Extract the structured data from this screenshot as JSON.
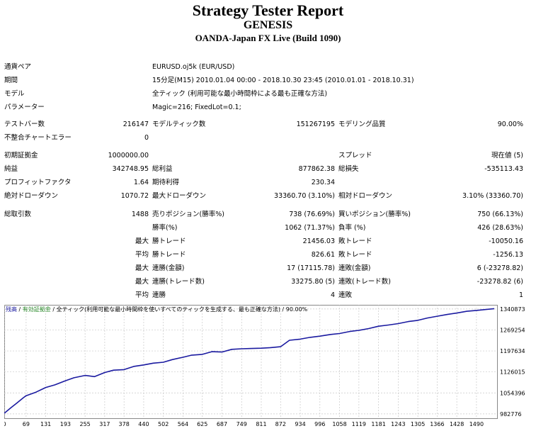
{
  "report": {
    "title": "Strategy Tester Report",
    "expert": "GENESIS",
    "server": "OANDA-Japan FX Live (Build 1090)"
  },
  "info": {
    "symbol_label": "通貨ペア",
    "symbol_value": "EURUSD.oj5k (EUR/USD)",
    "period_label": "期間",
    "period_value": "15分足(M15) 2010.01.04 00:00 - 2018.10.30 23:45 (2010.01.01 - 2018.10.31)",
    "model_label": "モデル",
    "model_value": "全ティック (利用可能な最小時間枠による最も正確な方法)",
    "params_label": "パラメーター",
    "params_value": "Magic=216; FixedLot=0.1;"
  },
  "stats": {
    "bars_label": "テストバー数",
    "bars_value": "216147",
    "ticks_label": "モデルティック数",
    "ticks_value": "151267195",
    "quality_label": "モデリング品質",
    "quality_value": "90.00%",
    "mismatch_label": "不整合チャートエラー",
    "mismatch_value": "0",
    "deposit_label": "初期証拠金",
    "deposit_value": "1000000.00",
    "spread_label": "スプレッド",
    "spread_value": "現在値 (5)",
    "net_label": "純益",
    "net_value": "342748.95",
    "gross_profit_label": "総利益",
    "gross_profit_value": "877862.38",
    "gross_loss_label": "総損失",
    "gross_loss_value": "-535113.43",
    "pf_label": "プロフィットファクタ",
    "pf_value": "1.64",
    "payoff_label": "期待利得",
    "payoff_value": "230.34",
    "abs_dd_label": "絶対ドローダウン",
    "abs_dd_value": "1070.72",
    "max_dd_label": "最大ドローダウン",
    "max_dd_value": "33360.70 (3.10%)",
    "rel_dd_label": "相対ドローダウン",
    "rel_dd_value": "3.10% (33360.70)",
    "trades_label": "総取引数",
    "trades_value": "1488",
    "short_label": "売りポジション(勝率%)",
    "short_value": "738 (76.69%)",
    "long_label": "買いポジション(勝率%)",
    "long_value": "750 (66.13%)",
    "winrate_label": "勝率(%)",
    "winrate_value": "1062 (71.37%)",
    "lossrate_label": "負率 (%)",
    "lossrate_value": "426 (28.63%)",
    "max_word": "最大",
    "avg_word": "平均",
    "largest_win_label": "勝トレード",
    "largest_win_value": "21456.03",
    "largest_loss_label": "敗トレード",
    "largest_loss_value": "-10050.16",
    "avg_win_label": "勝トレード",
    "avg_win_value": "826.61",
    "avg_loss_label": "敗トレード",
    "avg_loss_value": "-1256.13",
    "max_cons_win_label": "連勝(金額)",
    "max_cons_win_value": "17 (17115.78)",
    "max_cons_loss_label": "連敗(金額)",
    "max_cons_loss_value": "6 (-23278.82)",
    "max_cons_profit_label": "連勝(トレード数)",
    "max_cons_profit_value": "33275.80 (5)",
    "max_cons_lossamt_label": "連敗(トレード数)",
    "max_cons_lossamt_value": "-23278.82 (6)",
    "avg_cons_win_label": "連勝",
    "avg_cons_win_value": "4",
    "avg_cons_loss_label": "連敗",
    "avg_cons_loss_value": "1"
  },
  "chart_data": {
    "type": "line",
    "legend": {
      "balance": "残高",
      "sep1": " / ",
      "equity": "有効証拠金",
      "sep2": " / ",
      "model": "全ティック(利用可能な最小時間枠を使いすべてのティックを生成する、最も正確な方法)",
      "quality": " / 90.00%"
    },
    "colors": {
      "balance": "#1a1aa0",
      "equity": "#2e8b2e",
      "grid": "#c8c8c8"
    },
    "x_ticks": [
      0,
      69,
      131,
      193,
      255,
      317,
      378,
      440,
      502,
      564,
      625,
      687,
      749,
      811,
      872,
      934,
      996,
      1058,
      1119,
      1181,
      1243,
      1305,
      1366,
      1428,
      1490
    ],
    "y_ticks": [
      982776,
      1054396,
      1126015,
      1197634,
      1269254,
      1340873
    ],
    "xlim": [
      0,
      1555
    ],
    "ylim": [
      968000,
      1355000
    ],
    "series": [
      {
        "name": "残高",
        "x": [
          0,
          20,
          40,
          60,
          69,
          100,
          131,
          160,
          193,
          220,
          255,
          285,
          317,
          345,
          378,
          410,
          440,
          470,
          502,
          530,
          564,
          590,
          625,
          655,
          687,
          718,
          749,
          780,
          811,
          840,
          872,
          900,
          934,
          965,
          996,
          1030,
          1058,
          1090,
          1119,
          1150,
          1181,
          1212,
          1243,
          1275,
          1305,
          1335,
          1366,
          1398,
          1428,
          1460,
          1490,
          1520,
          1546
        ],
        "y": [
          985000,
          1003000,
          1020000,
          1038000,
          1045000,
          1057000,
          1073000,
          1082000,
          1096000,
          1106000,
          1114000,
          1110000,
          1124000,
          1132000,
          1134000,
          1145000,
          1150000,
          1156000,
          1159000,
          1168000,
          1176000,
          1183000,
          1186000,
          1195000,
          1194000,
          1203000,
          1205000,
          1206000,
          1207000,
          1209000,
          1212000,
          1234000,
          1238000,
          1244000,
          1248000,
          1254000,
          1257000,
          1264000,
          1268000,
          1274000,
          1282000,
          1286000,
          1291000,
          1298000,
          1302000,
          1310000,
          1316000,
          1322000,
          1327000,
          1333000,
          1336000,
          1339000,
          1342000
        ]
      }
    ]
  }
}
